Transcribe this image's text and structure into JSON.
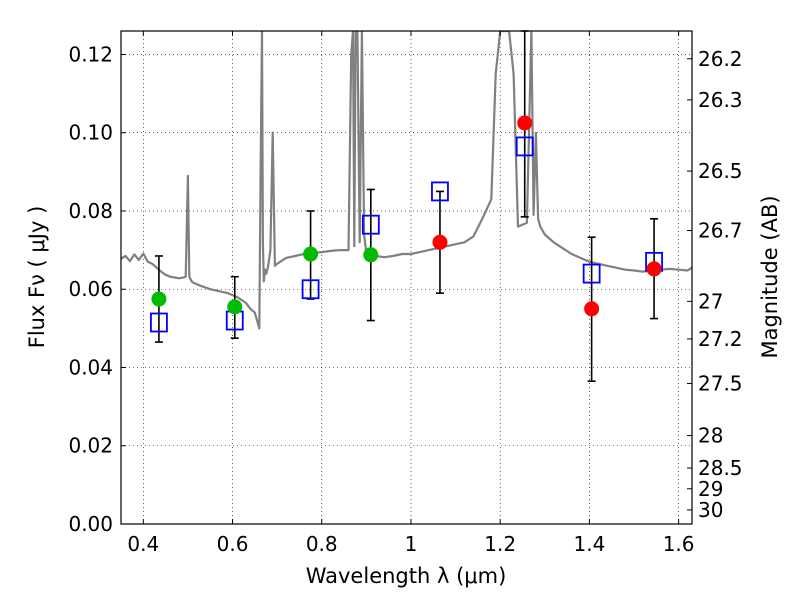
{
  "chart_data": {
    "type": "scatter",
    "title": "",
    "xlabel": "Wavelength  λ (μm)",
    "ylabel": "Flux  Fν  ( μJy )",
    "y2label": "Magnitude (AB)",
    "xlim": [
      0.35,
      1.63
    ],
    "ylim": [
      0.0,
      0.126
    ],
    "grid": true,
    "x_ticks": [
      0.4,
      0.6,
      0.8,
      1.0,
      1.2,
      1.4,
      1.6
    ],
    "x_tick_labels": [
      "0.4",
      "0.6",
      "0.8",
      "1",
      "1.2",
      "1.4",
      "1.6"
    ],
    "y_ticks": [
      0.0,
      0.02,
      0.04,
      0.06,
      0.08,
      0.1,
      0.12
    ],
    "y_tick_labels": [
      "0.00",
      "0.02",
      "0.04",
      "0.06",
      "0.08",
      "0.10",
      "0.12"
    ],
    "y2_ticks": [
      {
        "label": "26.2",
        "flux": 0.1189
      },
      {
        "label": "26.3",
        "flux": 0.1084
      },
      {
        "label": "26.5",
        "flux": 0.0902
      },
      {
        "label": "26.7",
        "flux": 0.075
      },
      {
        "label": "27",
        "flux": 0.0569
      },
      {
        "label": "27.2",
        "flux": 0.0473
      },
      {
        "label": "27.5",
        "flux": 0.0359
      },
      {
        "label": "28",
        "flux": 0.0226
      },
      {
        "label": "28.5",
        "flux": 0.0143
      },
      {
        "label": "29",
        "flux": 0.009
      },
      {
        "label": "30",
        "flux": 0.0036
      }
    ],
    "series": [
      {
        "color": "#808080",
        "style": "line",
        "x": [
          0.35,
          0.36,
          0.37,
          0.38,
          0.39,
          0.4,
          0.41,
          0.42,
          0.43,
          0.44,
          0.45,
          0.46,
          0.47,
          0.48,
          0.49,
          0.495,
          0.5,
          0.503,
          0.506,
          0.51,
          0.53,
          0.55,
          0.57,
          0.59,
          0.6,
          0.61,
          0.62,
          0.63,
          0.64,
          0.65,
          0.655,
          0.66,
          0.663,
          0.666,
          0.668,
          0.67,
          0.673,
          0.676,
          0.68,
          0.685,
          0.69,
          0.695,
          0.7,
          0.72,
          0.74,
          0.76,
          0.78,
          0.8,
          0.82,
          0.84,
          0.86,
          0.866,
          0.87,
          0.873,
          0.876,
          0.88,
          0.885,
          0.89,
          0.895,
          0.9,
          0.92,
          0.94,
          0.96,
          0.98,
          1.0,
          1.02,
          1.04,
          1.06,
          1.08,
          1.1,
          1.12,
          1.14,
          1.16,
          1.18,
          1.19,
          1.2,
          1.21,
          1.22,
          1.23,
          1.24,
          1.25,
          1.26,
          1.27,
          1.275,
          1.28,
          1.285,
          1.29,
          1.3,
          1.32,
          1.34,
          1.36,
          1.38,
          1.4,
          1.42,
          1.44,
          1.46,
          1.48,
          1.5,
          1.52,
          1.54,
          1.56,
          1.58,
          1.6,
          1.62,
          1.63
        ],
        "y": [
          0.0678,
          0.0685,
          0.0672,
          0.0689,
          0.0675,
          0.0691,
          0.067,
          0.0665,
          0.0655,
          0.0645,
          0.0637,
          0.0632,
          0.063,
          0.0628,
          0.063,
          0.0632,
          0.089,
          0.0633,
          0.0625,
          0.0618,
          0.0608,
          0.06,
          0.0595,
          0.059,
          0.0585,
          0.058,
          0.0573,
          0.0565,
          0.055,
          0.054,
          0.052,
          0.05,
          0.09,
          0.126,
          0.072,
          0.062,
          0.065,
          0.064,
          0.066,
          0.07,
          0.1,
          0.066,
          0.0665,
          0.068,
          0.0685,
          0.069,
          0.0693,
          0.0695,
          0.0698,
          0.07,
          0.07,
          0.12,
          0.126,
          0.071,
          0.126,
          0.126,
          0.072,
          0.126,
          0.074,
          0.069,
          0.0685,
          0.0682,
          0.0685,
          0.069,
          0.069,
          0.0695,
          0.07,
          0.0705,
          0.071,
          0.0715,
          0.072,
          0.0735,
          0.078,
          0.083,
          0.115,
          0.126,
          0.126,
          0.126,
          0.115,
          0.076,
          0.0765,
          0.077,
          0.126,
          0.079,
          0.1,
          0.078,
          0.076,
          0.074,
          0.072,
          0.0705,
          0.069,
          0.068,
          0.067,
          0.0665,
          0.066,
          0.0655,
          0.065,
          0.0648,
          0.0645,
          0.0648,
          0.065,
          0.0652,
          0.065,
          0.0648,
          0.0655
        ]
      },
      {
        "color": "#0000ff",
        "style": "open-square",
        "x": [
          0.435,
          0.605,
          0.775,
          0.91,
          1.065,
          1.255,
          1.405,
          1.545
        ],
        "y": [
          0.0515,
          0.052,
          0.06,
          0.0765,
          0.085,
          0.0965,
          0.064,
          0.067
        ]
      },
      {
        "color": "#00bb00",
        "style": "filled-circle",
        "x": [
          0.435,
          0.605,
          0.775,
          0.91
        ],
        "y": [
          0.0575,
          0.0555,
          0.069,
          0.0688
        ],
        "y_err_low": [
          0.0465,
          0.0475,
          0.0575,
          0.052
        ],
        "y_err_high": [
          0.0685,
          0.0632,
          0.08,
          0.0855
        ]
      },
      {
        "color": "#ff0000",
        "style": "filled-circle",
        "x": [
          1.065,
          1.255,
          1.405,
          1.545
        ],
        "y": [
          0.072,
          0.1025,
          0.055,
          0.0652
        ],
        "y_err_low": [
          0.059,
          0.0785,
          0.0365,
          0.0525
        ],
        "y_err_high": [
          0.085,
          0.126,
          0.0733,
          0.078
        ]
      }
    ]
  }
}
